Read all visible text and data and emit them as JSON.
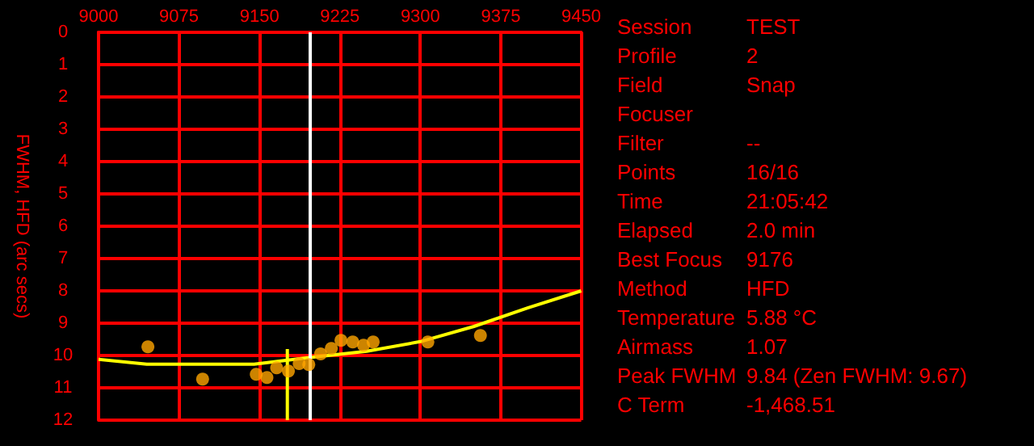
{
  "chart_data": [
    {
      "type": "scatter",
      "ylabel": "FWHM, HFD (arc secs)",
      "xlim": [
        9000,
        9450
      ],
      "xticks": [
        9000,
        9075,
        9150,
        9225,
        9300,
        9375,
        9450
      ],
      "ylim": [
        12,
        0
      ],
      "yticks": [
        0,
        1,
        2,
        3,
        4,
        5,
        6,
        7,
        8,
        9,
        10,
        11,
        12
      ],
      "grid": true,
      "series": [
        {
          "type": "scatter",
          "color": "#ffa500",
          "marker": "circle",
          "x": [
            9046,
            9097,
            9147,
            9157,
            9166,
            9177,
            9187,
            9196,
            9207,
            9217,
            9226,
            9237,
            9247,
            9256,
            9307,
            9356
          ],
          "values": [
            9.73,
            10.73,
            10.58,
            10.68,
            10.38,
            10.48,
            10.25,
            10.28,
            9.95,
            9.78,
            9.53,
            9.58,
            9.68,
            9.58,
            9.58,
            9.38
          ]
        },
        {
          "type": "line",
          "color": "#ffff00",
          "marker": "none",
          "x": [
            9000,
            9045,
            9145,
            9195,
            9250,
            9300,
            9350,
            9400,
            9450
          ],
          "values": [
            10.12,
            10.27,
            10.27,
            10.07,
            9.87,
            9.57,
            9.1,
            8.53,
            8.0
          ]
        },
        {
          "type": "line",
          "color": "#ffff00",
          "marker": "none",
          "x": [
            9176,
            9176
          ],
          "values": [
            9.8,
            12
          ]
        }
      ],
      "ref_lines": [
        {
          "axis": "x",
          "value": 9197,
          "color": "#ffffff"
        }
      ]
    },
    {
      "type": "other",
      "categories": [
        "Session",
        "Profile",
        "Field",
        "Focuser",
        "Filter",
        "Points",
        "Time",
        "Elapsed",
        "Best Focus",
        "Method",
        "Temperature",
        "Airmass",
        "Peak FWHM",
        "C Term"
      ],
      "value_labels": [
        "TEST",
        "2",
        "Snap",
        null,
        "--",
        "16/16",
        "21:05:42",
        "2.0 min",
        "9176",
        "HFD",
        "5.88 °C",
        "1.07",
        "9.84 (Zen FWHM: 9.67)",
        "-1,468.51"
      ]
    }
  ]
}
